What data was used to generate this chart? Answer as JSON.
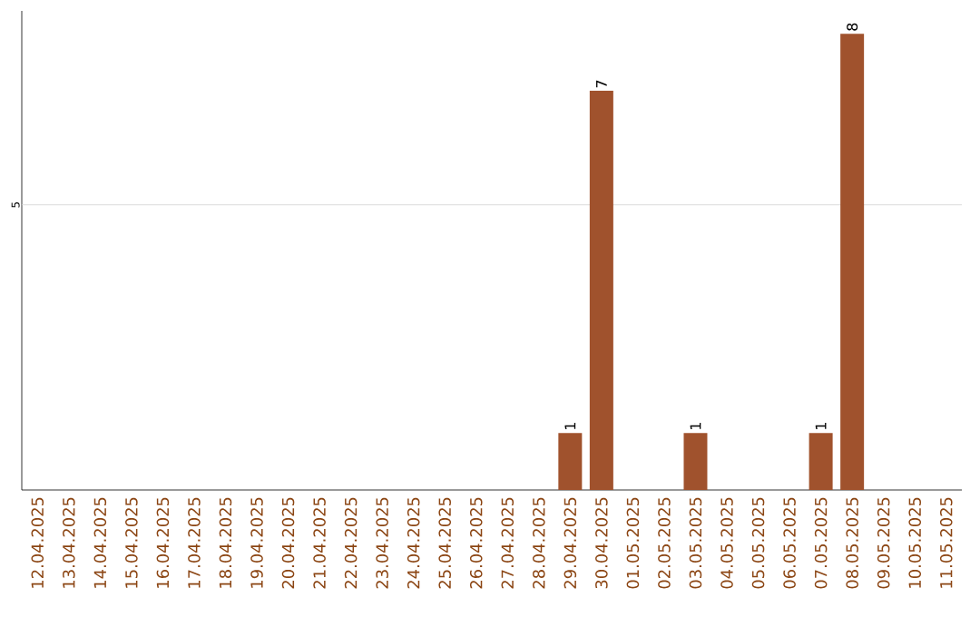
{
  "chart_data": {
    "type": "bar",
    "categories": [
      "12.04.2025",
      "13.04.2025",
      "14.04.2025",
      "15.04.2025",
      "16.04.2025",
      "17.04.2025",
      "18.04.2025",
      "19.04.2025",
      "20.04.2025",
      "21.04.2025",
      "22.04.2025",
      "23.04.2025",
      "24.04.2025",
      "25.04.2025",
      "26.04.2025",
      "27.04.2025",
      "28.04.2025",
      "29.04.2025",
      "30.04.2025",
      "01.05.2025",
      "02.05.2025",
      "03.05.2025",
      "04.05.2025",
      "05.05.2025",
      "06.05.2025",
      "07.05.2025",
      "08.05.2025",
      "09.05.2025",
      "10.05.2025",
      "11.05.2025"
    ],
    "values": [
      null,
      null,
      null,
      null,
      null,
      null,
      null,
      null,
      null,
      null,
      null,
      null,
      null,
      null,
      null,
      null,
      null,
      1,
      7,
      null,
      null,
      1,
      null,
      null,
      null,
      1,
      8,
      null,
      null,
      null
    ],
    "data_labels": true,
    "color": "#a0522d",
    "ylim": [
      0,
      8.4
    ],
    "ref_lines": [
      {
        "axis": "y",
        "value": 5,
        "label": "5",
        "color": "#d3d3d3"
      }
    ]
  }
}
